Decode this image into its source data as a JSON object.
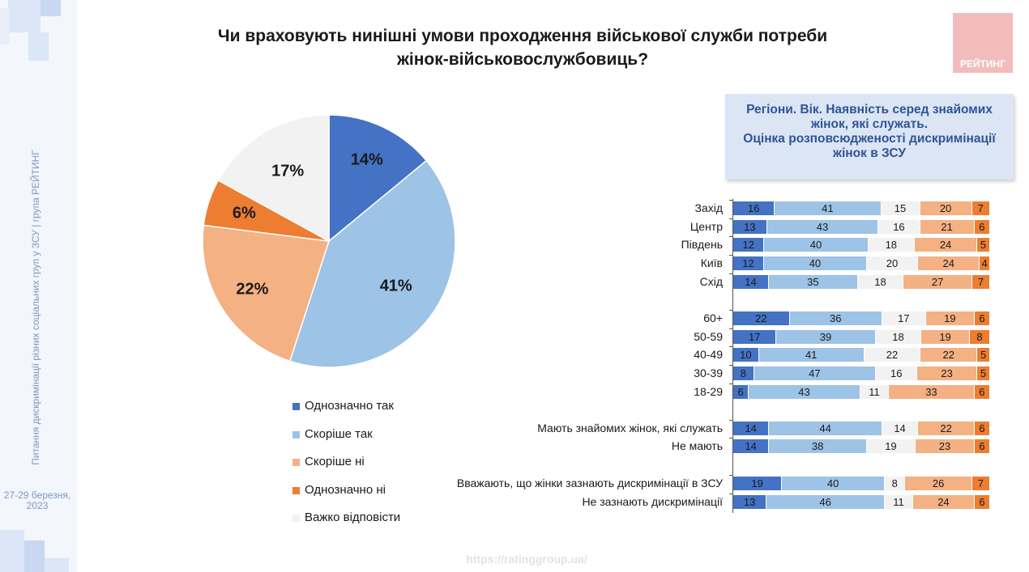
{
  "sidebar": {
    "vertical_text": "Питання дискримінації різних соціальних груп у ЗСУ  | група РЕЙТИНГ",
    "date": "27-29 березня, 2023"
  },
  "title": {
    "line1": "Чи враховують нинішні умови проходження військової служби потреби",
    "line2": "жінок-військовослужбовиць?"
  },
  "logo": {
    "text": "РЕЙТИНГ"
  },
  "infobox": {
    "lines": [
      "Регіони. Вік. Наявність серед знайомих",
      "жінок, які служать.",
      "Оцінка розповсюдженості дискримінації",
      "жінок в ЗСУ"
    ]
  },
  "colors": {
    "definitely_yes": "#4472c4",
    "rather_yes": "#9dc3e6",
    "rather_no": "#f4b183",
    "definitely_no": "#ed7d31",
    "hard_to_say": "#f2f2f2"
  },
  "footer": {
    "url": "https://ratinggroup.ua/"
  },
  "chart_data": [
    {
      "type": "pie",
      "title": "Чи враховують нинішні умови проходження військової служби потреби жінок-військовослужбовиць?",
      "categories": [
        "Однозначно так",
        "Скоріше так",
        "Скоріше ні",
        "Однозначно ні",
        "Важко відповісти"
      ],
      "values": [
        14,
        41,
        22,
        6,
        17
      ],
      "labels": [
        "14%",
        "41%",
        "22%",
        "6%",
        "17%"
      ],
      "legend_position": "bottom"
    },
    {
      "type": "bar",
      "orientation": "horizontal-stacked-100",
      "series_names": [
        "Однозначно так",
        "Скоріше так",
        "Важко відповісти",
        "Скоріше ні",
        "Однозначно ні"
      ],
      "rows": [
        {
          "label": "Захід",
          "values": [
            16,
            41,
            15,
            20,
            7
          ]
        },
        {
          "label": "Центр",
          "values": [
            13,
            43,
            16,
            21,
            6
          ]
        },
        {
          "label": "Південь",
          "values": [
            12,
            40,
            18,
            24,
            5
          ]
        },
        {
          "label": "Київ",
          "values": [
            12,
            40,
            20,
            24,
            4
          ]
        },
        {
          "label": "Схід",
          "values": [
            14,
            35,
            18,
            27,
            7
          ]
        },
        {
          "label": "60+",
          "values": [
            22,
            36,
            17,
            19,
            6
          ]
        },
        {
          "label": "50-59",
          "values": [
            17,
            39,
            18,
            19,
            8
          ]
        },
        {
          "label": "40-49",
          "values": [
            10,
            41,
            22,
            22,
            5
          ]
        },
        {
          "label": "30-39",
          "values": [
            8,
            47,
            16,
            23,
            5
          ]
        },
        {
          "label": "18-29",
          "values": [
            6,
            43,
            11,
            33,
            6
          ]
        },
        {
          "label": "Мають знайомих жінок, які служать",
          "values": [
            14,
            44,
            14,
            22,
            6
          ]
        },
        {
          "label": "Не мають",
          "values": [
            14,
            38,
            19,
            23,
            6
          ]
        },
        {
          "label": "Вважають, що жінки зазнають дискримінації в ЗСУ",
          "values": [
            19,
            40,
            8,
            26,
            7
          ]
        },
        {
          "label": "Не зазнають дискримінації",
          "values": [
            13,
            46,
            11,
            24,
            6
          ]
        }
      ]
    }
  ]
}
